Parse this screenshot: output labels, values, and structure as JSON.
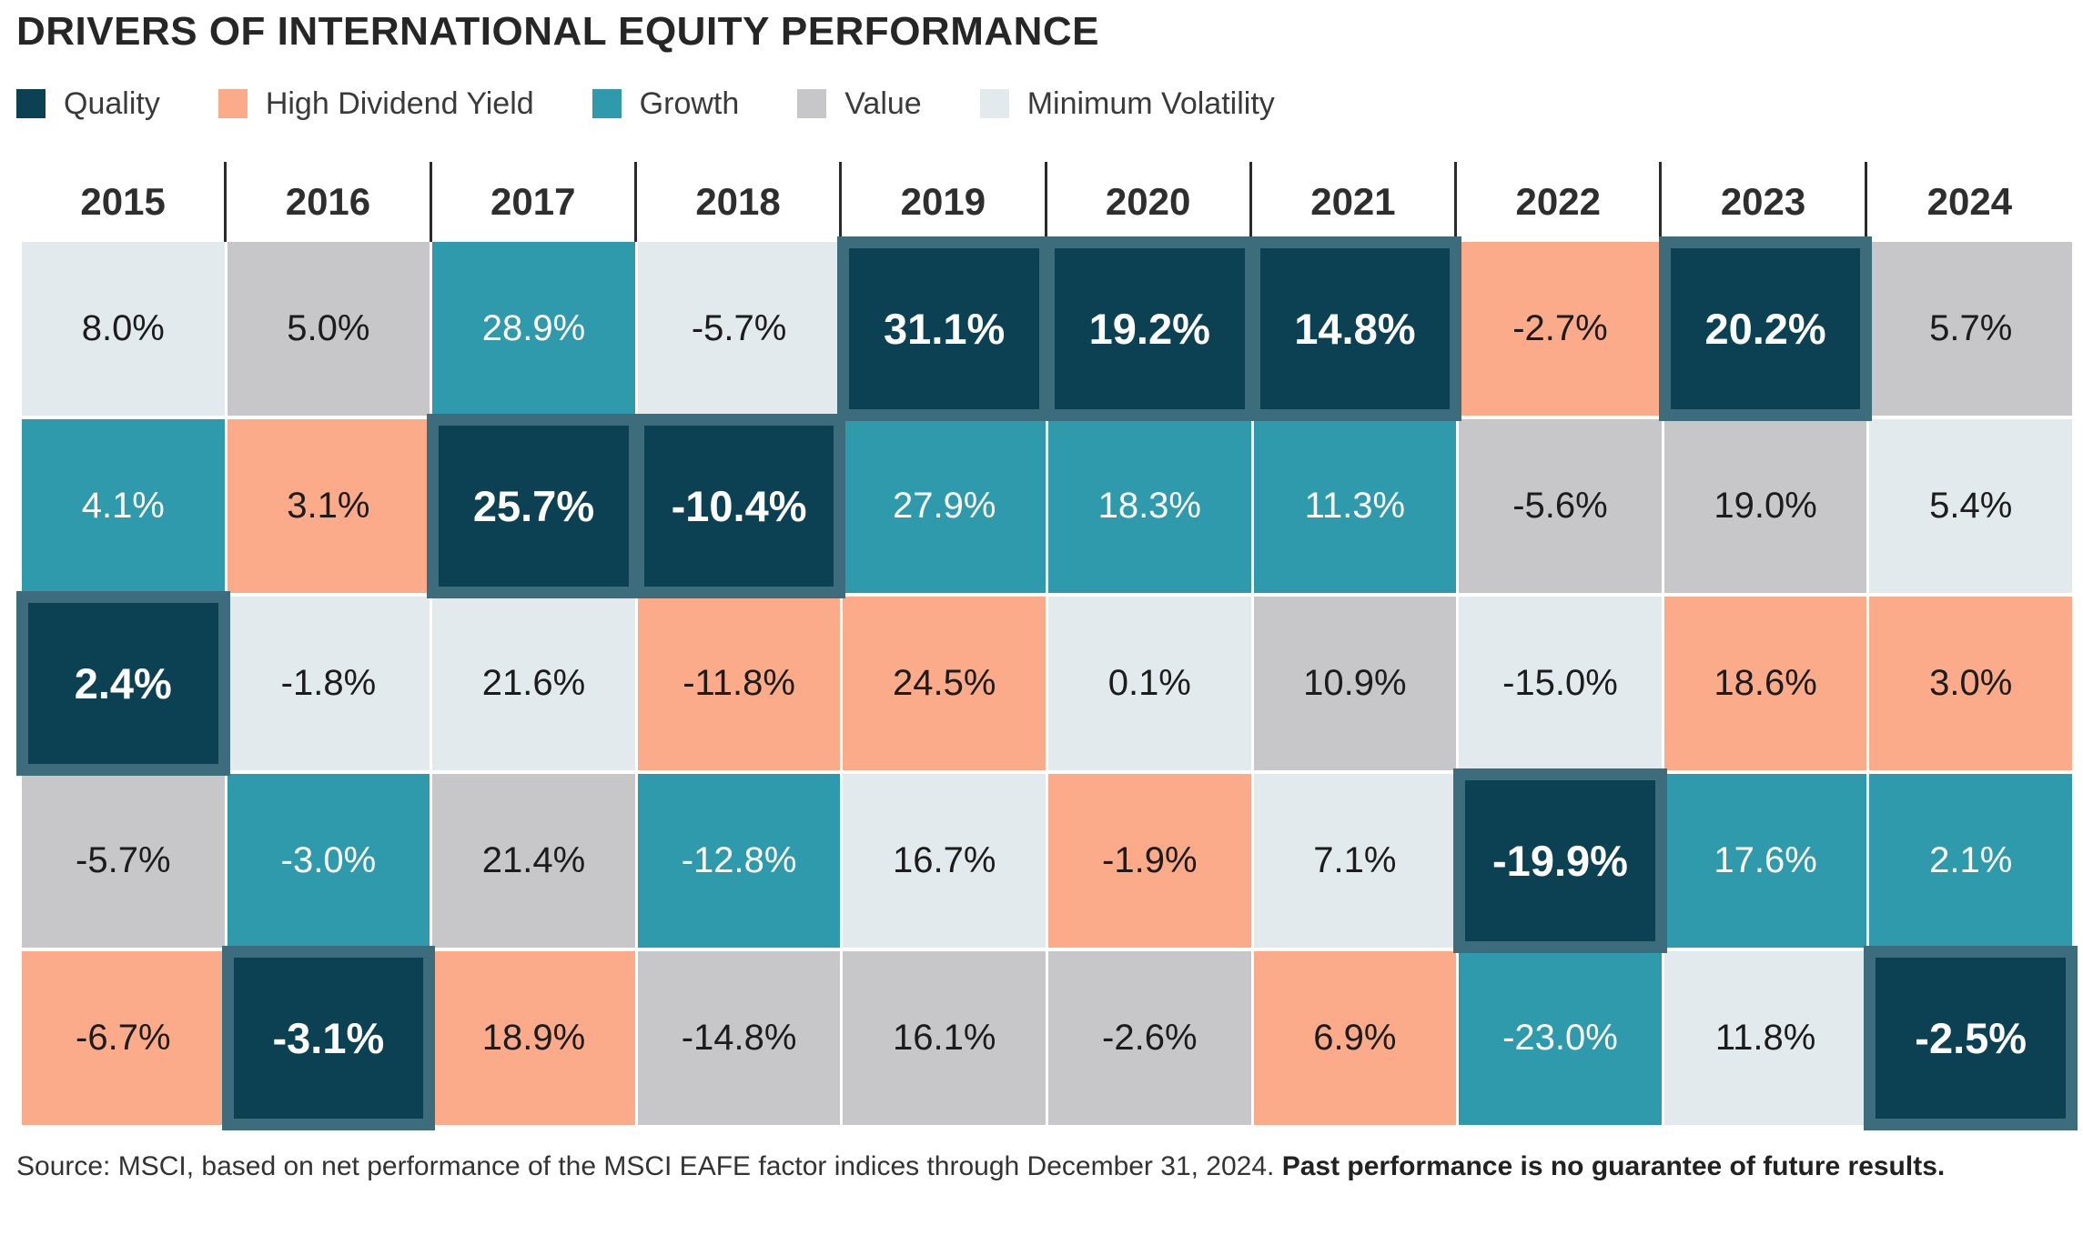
{
  "title": "DRIVERS OF INTERNATIONAL EQUITY PERFORMANCE",
  "legend": [
    {
      "factor": "quality",
      "label": "Quality",
      "color": "#0c4154",
      "text_color": "#ffffff"
    },
    {
      "factor": "hdy",
      "label": "High Dividend Yield",
      "color": "#fbab8a",
      "text_color": "#1c1c1c"
    },
    {
      "factor": "growth",
      "label": "Growth",
      "color": "#2f9aab",
      "text_color": "#ffffff"
    },
    {
      "factor": "value",
      "label": "Value",
      "color": "#c7c7ca",
      "text_color": "#1c1c1c"
    },
    {
      "factor": "minvol",
      "label": "Minimum Volatility",
      "color": "#e3eaed",
      "text_color": "#1c1c1c"
    }
  ],
  "colors": {
    "quality_frame": "#3d6d7d",
    "header_divider": "#2b2b2b",
    "background": "#ffffff",
    "title_text": "#262626"
  },
  "source": {
    "regular": "Source: MSCI, based on net performance of the MSCI EAFE factor indices through December 31, 2024. ",
    "bold": "Past performance is no guarantee of future results."
  },
  "chart_data": {
    "type": "heatmap",
    "title": "DRIVERS OF INTERNATIONAL EQUITY PERFORMANCE",
    "columns": [
      "2015",
      "2016",
      "2017",
      "2018",
      "2019",
      "2020",
      "2021",
      "2022",
      "2023",
      "2024"
    ],
    "highlight_factor": "quality",
    "legend_position": "top",
    "rows": [
      [
        {
          "value": 8.0,
          "label": "8.0%",
          "factor": "minvol"
        },
        {
          "value": 5.0,
          "label": "5.0%",
          "factor": "value"
        },
        {
          "value": 28.9,
          "label": "28.9%",
          "factor": "growth"
        },
        {
          "value": -5.7,
          "label": "-5.7%",
          "factor": "minvol"
        },
        {
          "value": 31.1,
          "label": "31.1%",
          "factor": "quality"
        },
        {
          "value": 19.2,
          "label": "19.2%",
          "factor": "quality"
        },
        {
          "value": 14.8,
          "label": "14.8%",
          "factor": "quality"
        },
        {
          "value": -2.7,
          "label": "-2.7%",
          "factor": "hdy"
        },
        {
          "value": 20.2,
          "label": "20.2%",
          "factor": "quality"
        },
        {
          "value": 5.7,
          "label": "5.7%",
          "factor": "value"
        }
      ],
      [
        {
          "value": 4.1,
          "label": "4.1%",
          "factor": "growth"
        },
        {
          "value": 3.1,
          "label": "3.1%",
          "factor": "hdy"
        },
        {
          "value": 25.7,
          "label": "25.7%",
          "factor": "quality"
        },
        {
          "value": -10.4,
          "label": "-10.4%",
          "factor": "quality"
        },
        {
          "value": 27.9,
          "label": "27.9%",
          "factor": "growth"
        },
        {
          "value": 18.3,
          "label": "18.3%",
          "factor": "growth"
        },
        {
          "value": 11.3,
          "label": "11.3%",
          "factor": "growth"
        },
        {
          "value": -5.6,
          "label": "-5.6%",
          "factor": "value"
        },
        {
          "value": 19.0,
          "label": "19.0%",
          "factor": "value"
        },
        {
          "value": 5.4,
          "label": "5.4%",
          "factor": "minvol"
        }
      ],
      [
        {
          "value": 2.4,
          "label": "2.4%",
          "factor": "quality"
        },
        {
          "value": -1.8,
          "label": "-1.8%",
          "factor": "minvol"
        },
        {
          "value": 21.6,
          "label": "21.6%",
          "factor": "minvol"
        },
        {
          "value": -11.8,
          "label": "-11.8%",
          "factor": "hdy"
        },
        {
          "value": 24.5,
          "label": "24.5%",
          "factor": "hdy"
        },
        {
          "value": 0.1,
          "label": "0.1%",
          "factor": "minvol"
        },
        {
          "value": 10.9,
          "label": "10.9%",
          "factor": "value"
        },
        {
          "value": -15.0,
          "label": "-15.0%",
          "factor": "minvol"
        },
        {
          "value": 18.6,
          "label": "18.6%",
          "factor": "hdy"
        },
        {
          "value": 3.0,
          "label": "3.0%",
          "factor": "hdy"
        }
      ],
      [
        {
          "value": -5.7,
          "label": "-5.7%",
          "factor": "value"
        },
        {
          "value": -3.0,
          "label": "-3.0%",
          "factor": "growth"
        },
        {
          "value": 21.4,
          "label": "21.4%",
          "factor": "value"
        },
        {
          "value": -12.8,
          "label": "-12.8%",
          "factor": "growth"
        },
        {
          "value": 16.7,
          "label": "16.7%",
          "factor": "minvol"
        },
        {
          "value": -1.9,
          "label": "-1.9%",
          "factor": "hdy"
        },
        {
          "value": 7.1,
          "label": "7.1%",
          "factor": "minvol"
        },
        {
          "value": -19.9,
          "label": "-19.9%",
          "factor": "quality"
        },
        {
          "value": 17.6,
          "label": "17.6%",
          "factor": "growth"
        },
        {
          "value": 2.1,
          "label": "2.1%",
          "factor": "growth"
        }
      ],
      [
        {
          "value": -6.7,
          "label": "-6.7%",
          "factor": "hdy"
        },
        {
          "value": -3.1,
          "label": "-3.1%",
          "factor": "quality"
        },
        {
          "value": 18.9,
          "label": "18.9%",
          "factor": "hdy"
        },
        {
          "value": -14.8,
          "label": "-14.8%",
          "factor": "value"
        },
        {
          "value": 16.1,
          "label": "16.1%",
          "factor": "value"
        },
        {
          "value": -2.6,
          "label": "-2.6%",
          "factor": "value"
        },
        {
          "value": 6.9,
          "label": "6.9%",
          "factor": "hdy"
        },
        {
          "value": -23.0,
          "label": "-23.0%",
          "factor": "growth"
        },
        {
          "value": 11.8,
          "label": "11.8%",
          "factor": "minvol"
        },
        {
          "value": -2.5,
          "label": "-2.5%",
          "factor": "quality"
        }
      ]
    ]
  }
}
